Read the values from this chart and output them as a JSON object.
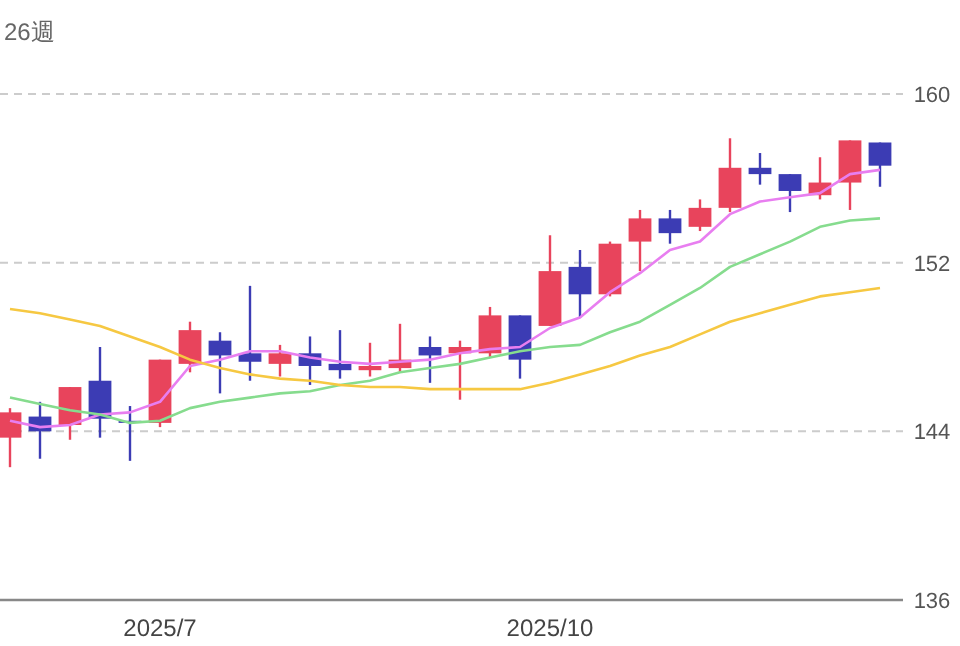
{
  "chart_data": {
    "type": "candlestick",
    "annotations": [
      "26週"
    ],
    "categories": [
      null,
      null,
      null,
      null,
      null,
      "2025/7",
      null,
      null,
      null,
      null,
      null,
      null,
      null,
      null,
      null,
      null,
      null,
      null,
      "2025/10",
      null,
      null,
      null,
      null,
      null,
      null,
      null,
      null,
      null,
      null,
      null
    ],
    "series": [
      {
        "colors": [
          "#e8445c",
          "#3c3cb4",
          "#e8445c",
          "#3c3cb4",
          "#3c3cb4",
          "#e8445c",
          "#e8445c",
          "#3c3cb4",
          "#3c3cb4",
          "#e8445c",
          "#3c3cb4",
          "#3c3cb4",
          "#e8445c",
          "#e8445c",
          "#3c3cb4",
          "#e8445c",
          "#e8445c",
          "#3c3cb4",
          "#e8445c",
          "#3c3cb4",
          "#e8445c",
          "#e8445c",
          "#3c3cb4",
          "#e8445c",
          "#e8445c",
          "#3c3cb4",
          "#3c3cb4",
          "#e8445c",
          "#e8445c",
          "#3c3cb4"
        ],
        "ohlc": [
          [
            143.7,
            145.1,
            142.3,
            144.9
          ],
          [
            144.7,
            145.4,
            142.7,
            144.0
          ],
          [
            144.3,
            146.1,
            143.6,
            146.1
          ],
          [
            146.4,
            148.0,
            143.7,
            144.6
          ],
          [
            144.5,
            145.2,
            142.6,
            144.4
          ],
          [
            144.4,
            147.4,
            144.2,
            147.4
          ],
          [
            147.2,
            149.2,
            146.8,
            148.8
          ],
          [
            148.3,
            148.7,
            145.8,
            147.6
          ],
          [
            147.7,
            150.9,
            146.4,
            147.3
          ],
          [
            147.2,
            148.1,
            146.6,
            147.7
          ],
          [
            147.7,
            148.5,
            146.2,
            147.1
          ],
          [
            147.2,
            148.8,
            146.5,
            146.9
          ],
          [
            146.9,
            148.2,
            146.6,
            147.1
          ],
          [
            147.0,
            149.1,
            146.8,
            147.4
          ],
          [
            148.0,
            148.5,
            146.3,
            147.6
          ],
          [
            147.7,
            148.3,
            145.5,
            148.0
          ],
          [
            147.7,
            149.9,
            147.5,
            149.5
          ],
          [
            149.5,
            149.5,
            146.5,
            147.4
          ],
          [
            149.0,
            153.3,
            149.0,
            151.6
          ],
          [
            151.8,
            152.6,
            149.4,
            150.5
          ],
          [
            150.5,
            153.0,
            150.4,
            152.9
          ],
          [
            153.0,
            154.5,
            151.6,
            154.1
          ],
          [
            154.1,
            154.5,
            152.9,
            153.4
          ],
          [
            153.7,
            155.0,
            153.5,
            154.6
          ],
          [
            154.6,
            157.9,
            154.4,
            156.5
          ],
          [
            156.5,
            157.2,
            155.7,
            156.2
          ],
          [
            156.2,
            156.2,
            154.4,
            155.4
          ],
          [
            155.2,
            157.0,
            155.0,
            155.8
          ],
          [
            155.8,
            157.8,
            154.5,
            157.8
          ],
          [
            157.7,
            157.7,
            155.6,
            156.6
          ]
        ]
      },
      {
        "type": "line",
        "color": "#e87ef0",
        "values": [
          144.5,
          144.2,
          144.3,
          144.8,
          144.9,
          145.4,
          147.1,
          147.4,
          147.8,
          147.8,
          147.5,
          147.3,
          147.2,
          147.3,
          147.4,
          147.7,
          147.9,
          148.0,
          148.9,
          149.4,
          150.6,
          151.5,
          152.6,
          153.0,
          154.3,
          154.9,
          155.1,
          155.3,
          156.2,
          156.4
        ]
      },
      {
        "type": "line",
        "color": "#86dc8e",
        "values": [
          145.6,
          145.3,
          145.0,
          144.8,
          144.4,
          144.5,
          145.1,
          145.4,
          145.6,
          145.8,
          145.9,
          146.2,
          146.4,
          146.8,
          147.0,
          147.2,
          147.5,
          147.8,
          148.0,
          148.1,
          148.7,
          149.2,
          150.0,
          150.8,
          151.8,
          152.4,
          153.0,
          153.7,
          154.0,
          154.1
        ]
      },
      {
        "type": "line",
        "color": "#f6c842",
        "values": [
          149.8,
          149.6,
          149.3,
          149.0,
          148.5,
          148.0,
          147.4,
          147.0,
          146.7,
          146.5,
          146.4,
          146.2,
          146.1,
          146.1,
          146.0,
          146.0,
          146.0,
          146.0,
          146.3,
          146.7,
          147.1,
          147.6,
          148.0,
          148.6,
          149.2,
          149.6,
          150.0,
          150.4,
          150.6,
          150.8
        ]
      }
    ],
    "ylim": [
      136,
      160
    ],
    "yticks": [
      136,
      144,
      152,
      160
    ],
    "grid": "y"
  }
}
